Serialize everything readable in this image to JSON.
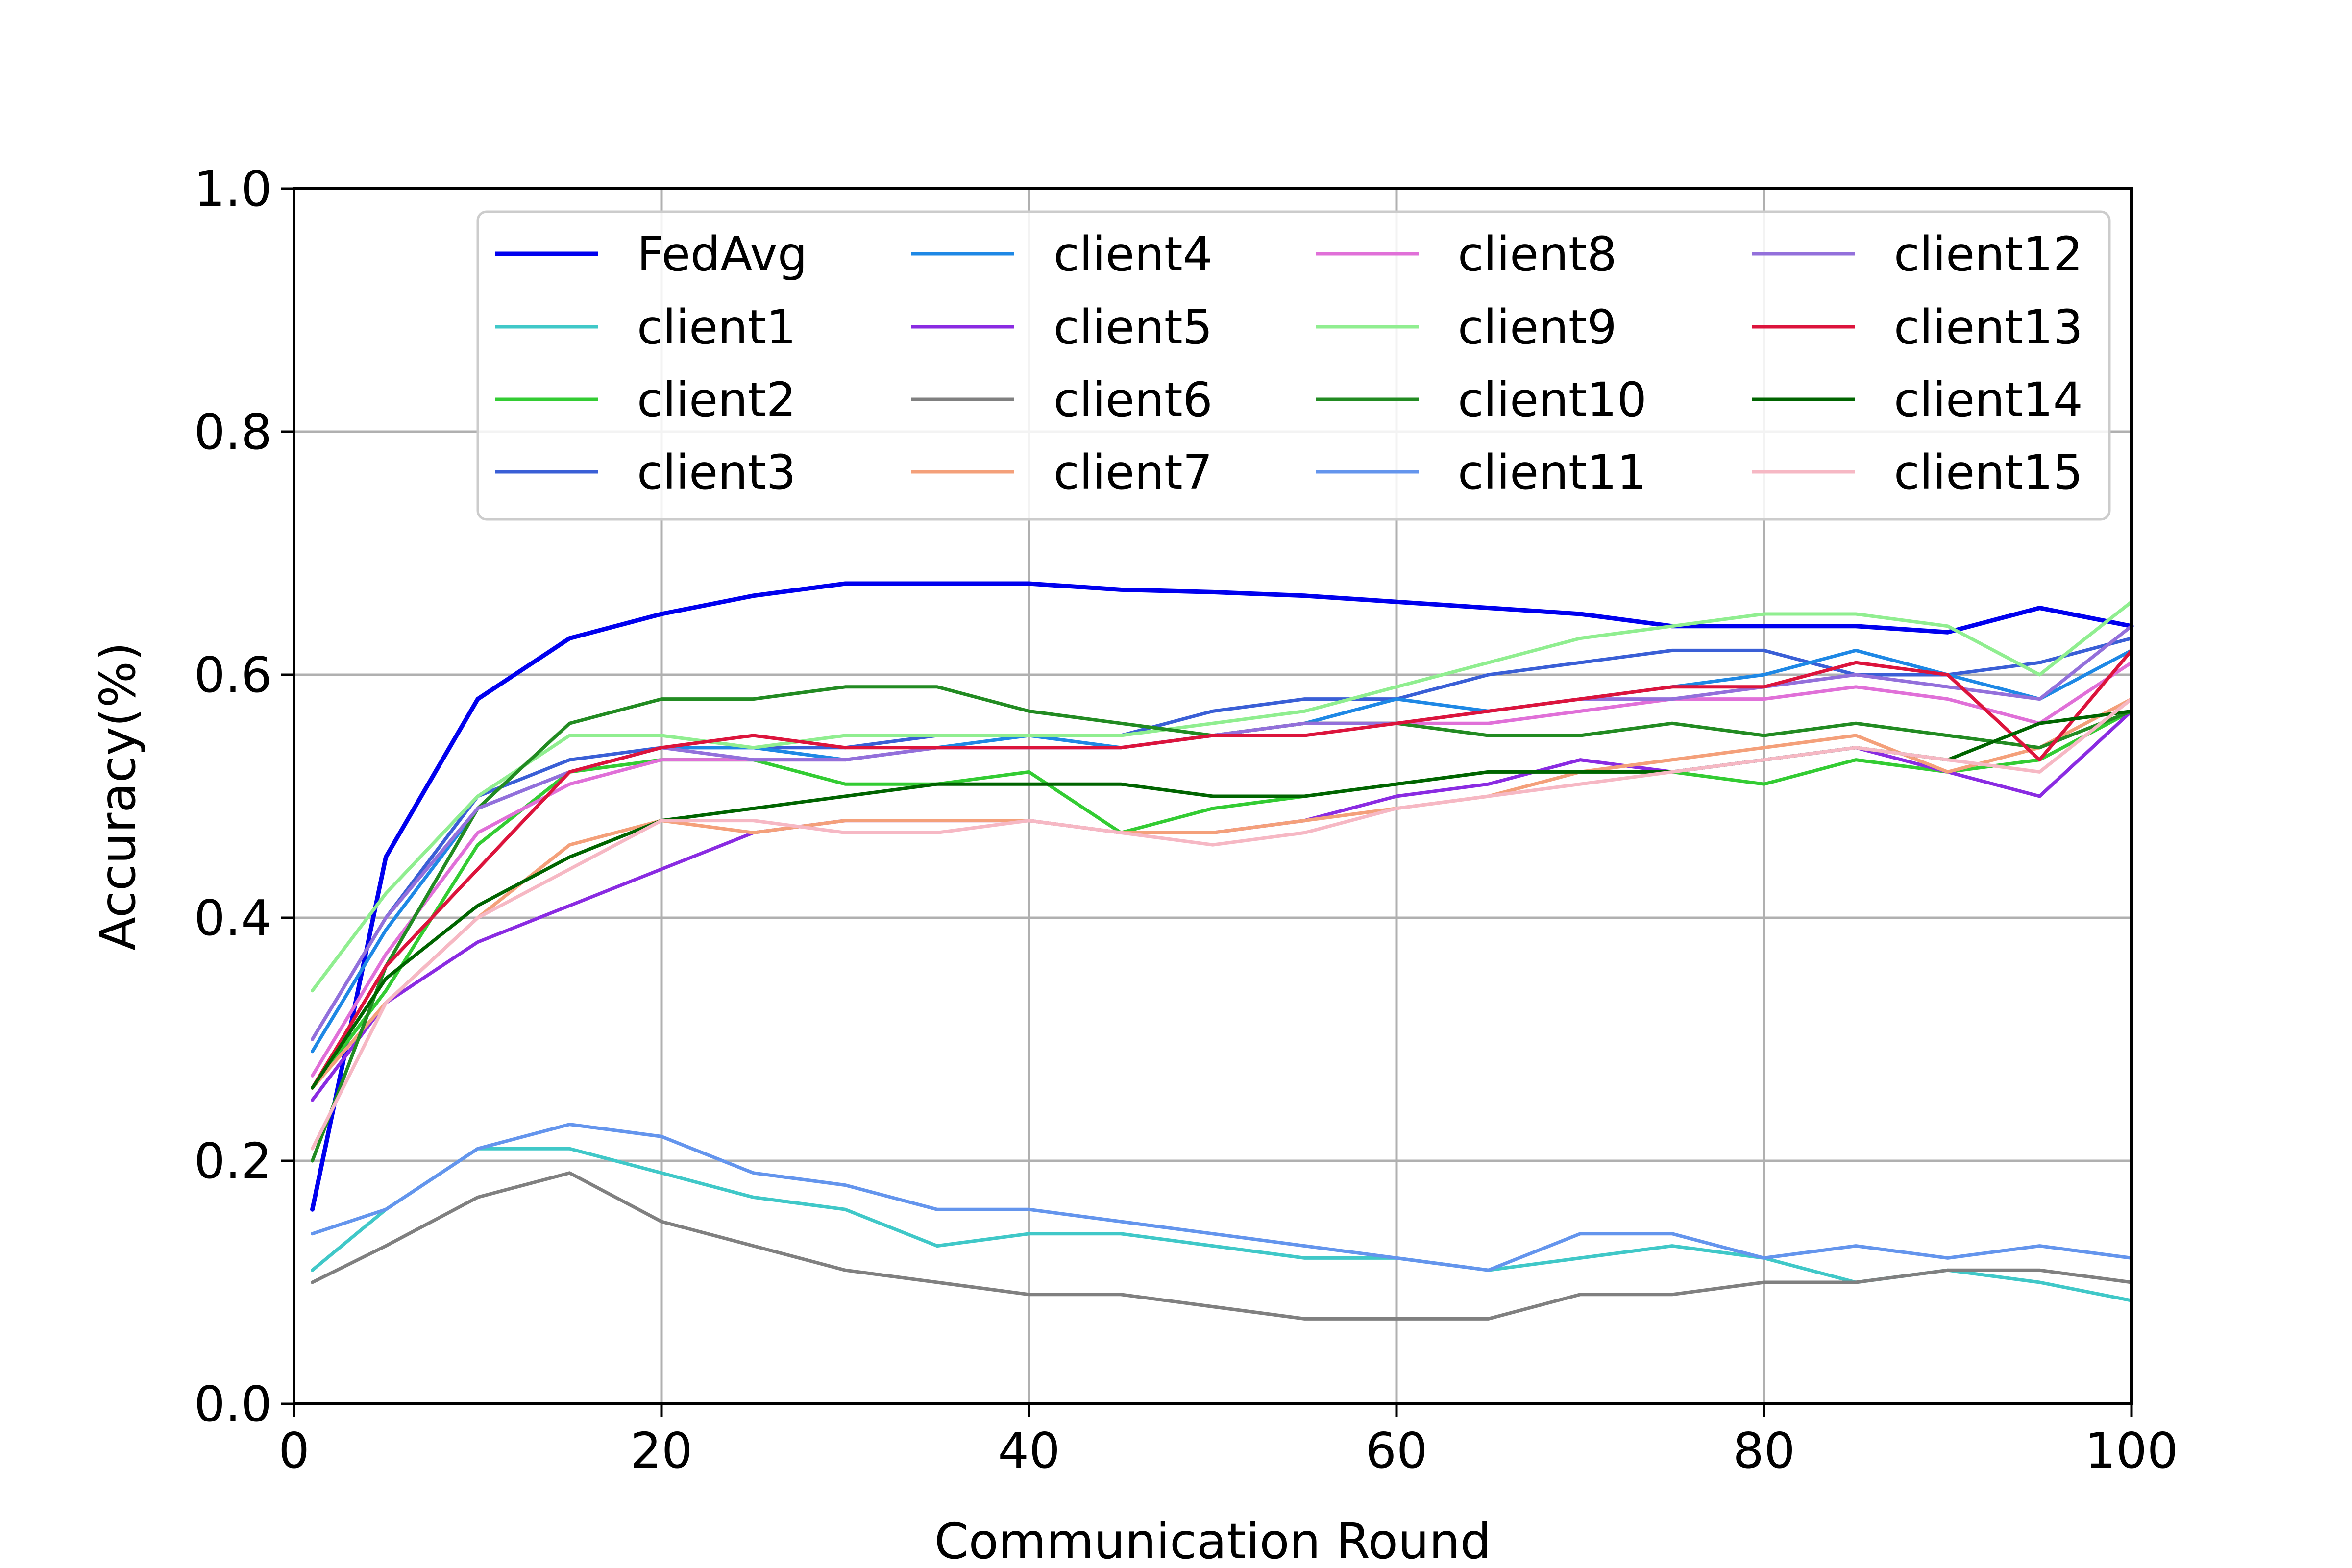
{
  "chart_data": {
    "type": "line",
    "title": "",
    "xlabel": "Communication Round",
    "ylabel": "Accuracy(%)",
    "xlim": [
      0,
      100
    ],
    "ylim": [
      0.0,
      1.0
    ],
    "xticks": [
      "0",
      "20",
      "40",
      "60",
      "80",
      "100"
    ],
    "yticks": [
      "0.0",
      "0.2",
      "0.4",
      "0.6",
      "0.8",
      "1.0"
    ],
    "grid": true,
    "legend_position": "upper-center",
    "x": [
      1,
      5,
      10,
      15,
      20,
      25,
      30,
      35,
      40,
      45,
      50,
      55,
      60,
      65,
      70,
      75,
      80,
      85,
      90,
      95,
      100
    ],
    "series": [
      {
        "name": "FedAvg",
        "color": "#0000ee",
        "values": [
          0.16,
          0.45,
          0.58,
          0.63,
          0.65,
          0.665,
          0.675,
          0.675,
          0.675,
          0.67,
          0.668,
          0.665,
          0.66,
          0.655,
          0.65,
          0.64,
          0.64,
          0.64,
          0.635,
          0.655,
          0.64
        ]
      },
      {
        "name": "client1",
        "color": "#40c8c8",
        "values": [
          0.11,
          0.16,
          0.21,
          0.21,
          0.19,
          0.17,
          0.16,
          0.13,
          0.14,
          0.14,
          0.13,
          0.12,
          0.12,
          0.11,
          0.12,
          0.13,
          0.12,
          0.1,
          0.11,
          0.1,
          0.085
        ]
      },
      {
        "name": "client2",
        "color": "#33cc33",
        "values": [
          0.26,
          0.34,
          0.46,
          0.52,
          0.53,
          0.53,
          0.51,
          0.51,
          0.52,
          0.47,
          0.49,
          0.5,
          0.51,
          0.52,
          0.52,
          0.52,
          0.51,
          0.53,
          0.52,
          0.53,
          0.57
        ]
      },
      {
        "name": "client3",
        "color": "#3a5fd6",
        "values": [
          0.3,
          0.4,
          0.5,
          0.53,
          0.54,
          0.54,
          0.54,
          0.55,
          0.55,
          0.55,
          0.57,
          0.58,
          0.58,
          0.6,
          0.61,
          0.62,
          0.62,
          0.6,
          0.6,
          0.61,
          0.63
        ]
      },
      {
        "name": "client4",
        "color": "#1e88e5",
        "values": [
          0.29,
          0.39,
          0.49,
          0.52,
          0.54,
          0.54,
          0.53,
          0.54,
          0.55,
          0.54,
          0.55,
          0.56,
          0.58,
          0.57,
          0.58,
          0.59,
          0.6,
          0.62,
          0.6,
          0.58,
          0.62
        ]
      },
      {
        "name": "client5",
        "color": "#8a2be2",
        "values": [
          0.25,
          0.33,
          0.38,
          0.41,
          0.44,
          0.47,
          0.48,
          0.48,
          0.48,
          0.47,
          0.47,
          0.48,
          0.5,
          0.51,
          0.53,
          0.52,
          0.53,
          0.54,
          0.52,
          0.5,
          0.57
        ]
      },
      {
        "name": "client6",
        "color": "#808080",
        "values": [
          0.1,
          0.13,
          0.17,
          0.19,
          0.15,
          0.13,
          0.11,
          0.1,
          0.09,
          0.09,
          0.08,
          0.07,
          0.07,
          0.07,
          0.09,
          0.09,
          0.1,
          0.1,
          0.11,
          0.11,
          0.1
        ]
      },
      {
        "name": "client7",
        "color": "#f4a07a",
        "values": [
          0.26,
          0.33,
          0.4,
          0.46,
          0.48,
          0.47,
          0.48,
          0.48,
          0.48,
          0.47,
          0.47,
          0.48,
          0.49,
          0.5,
          0.52,
          0.53,
          0.54,
          0.55,
          0.52,
          0.54,
          0.58
        ]
      },
      {
        "name": "client8",
        "color": "#e070d8",
        "values": [
          0.27,
          0.37,
          0.47,
          0.51,
          0.53,
          0.53,
          0.53,
          0.54,
          0.54,
          0.54,
          0.55,
          0.56,
          0.56,
          0.56,
          0.57,
          0.58,
          0.58,
          0.59,
          0.58,
          0.56,
          0.61
        ]
      },
      {
        "name": "client9",
        "color": "#90ee90",
        "values": [
          0.34,
          0.42,
          0.5,
          0.55,
          0.55,
          0.54,
          0.55,
          0.55,
          0.55,
          0.55,
          0.56,
          0.57,
          0.59,
          0.61,
          0.63,
          0.64,
          0.65,
          0.65,
          0.64,
          0.6,
          0.66
        ]
      },
      {
        "name": "client10",
        "color": "#228b22",
        "values": [
          0.2,
          0.36,
          0.49,
          0.56,
          0.58,
          0.58,
          0.59,
          0.59,
          0.57,
          0.56,
          0.55,
          0.56,
          0.56,
          0.55,
          0.55,
          0.56,
          0.55,
          0.56,
          0.55,
          0.54,
          0.57
        ]
      },
      {
        "name": "client11",
        "color": "#6495ed",
        "values": [
          0.14,
          0.16,
          0.21,
          0.23,
          0.22,
          0.19,
          0.18,
          0.16,
          0.16,
          0.15,
          0.14,
          0.13,
          0.12,
          0.11,
          0.14,
          0.14,
          0.12,
          0.13,
          0.12,
          0.13,
          0.12
        ]
      },
      {
        "name": "client12",
        "color": "#9370db",
        "values": [
          0.3,
          0.4,
          0.49,
          0.52,
          0.54,
          0.53,
          0.53,
          0.54,
          0.54,
          0.54,
          0.55,
          0.56,
          0.56,
          0.57,
          0.58,
          0.58,
          0.59,
          0.6,
          0.59,
          0.58,
          0.64
        ]
      },
      {
        "name": "client13",
        "color": "#dc143c",
        "values": [
          0.26,
          0.36,
          0.44,
          0.52,
          0.54,
          0.55,
          0.54,
          0.54,
          0.54,
          0.54,
          0.55,
          0.55,
          0.56,
          0.57,
          0.58,
          0.59,
          0.59,
          0.61,
          0.6,
          0.53,
          0.62
        ]
      },
      {
        "name": "client14",
        "color": "#006400",
        "values": [
          0.26,
          0.35,
          0.41,
          0.45,
          0.48,
          0.49,
          0.5,
          0.51,
          0.51,
          0.51,
          0.5,
          0.5,
          0.51,
          0.52,
          0.52,
          0.52,
          0.53,
          0.54,
          0.53,
          0.56,
          0.57
        ]
      },
      {
        "name": "client15",
        "color": "#f6b8c4",
        "values": [
          0.21,
          0.33,
          0.4,
          0.44,
          0.48,
          0.48,
          0.47,
          0.47,
          0.48,
          0.47,
          0.46,
          0.47,
          0.49,
          0.5,
          0.51,
          0.52,
          0.53,
          0.54,
          0.53,
          0.52,
          0.58
        ]
      }
    ]
  }
}
